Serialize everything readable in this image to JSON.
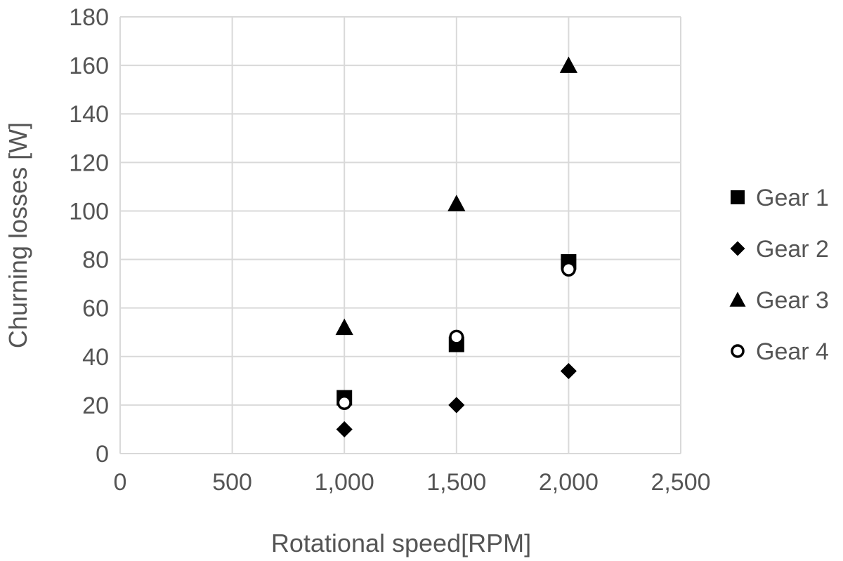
{
  "chart_data": {
    "type": "scatter",
    "title": "",
    "xlabel": "Rotational speed[RPM]",
    "ylabel": "Churning losses [W]",
    "xlim": [
      0,
      2500
    ],
    "ylim": [
      0,
      180
    ],
    "x_ticks": [
      0,
      500,
      1000,
      1500,
      2000,
      2500
    ],
    "x_tick_labels": [
      "0",
      "500",
      "1,000",
      "1,500",
      "2,000",
      "2,500"
    ],
    "y_ticks": [
      0,
      20,
      40,
      60,
      80,
      100,
      120,
      140,
      160,
      180
    ],
    "y_tick_labels": [
      "0",
      "20",
      "40",
      "60",
      "80",
      "100",
      "120",
      "140",
      "160",
      "180"
    ],
    "grid": true,
    "legend_position": "right",
    "series": [
      {
        "name": "Gear 1",
        "marker": "square",
        "color": "#000000",
        "x": [
          1000,
          1500,
          2000
        ],
        "y": [
          23,
          45,
          79
        ]
      },
      {
        "name": "Gear 2",
        "marker": "diamond",
        "color": "#000000",
        "x": [
          1000,
          1500,
          2000
        ],
        "y": [
          10,
          20,
          34
        ]
      },
      {
        "name": "Gear 3",
        "marker": "triangle",
        "color": "#000000",
        "x": [
          1000,
          1500,
          2000
        ],
        "y": [
          52,
          103,
          160
        ]
      },
      {
        "name": "Gear 4",
        "marker": "circle-open",
        "color": "#000000",
        "x": [
          1000,
          1500,
          2000
        ],
        "y": [
          21,
          48,
          76
        ]
      }
    ]
  }
}
